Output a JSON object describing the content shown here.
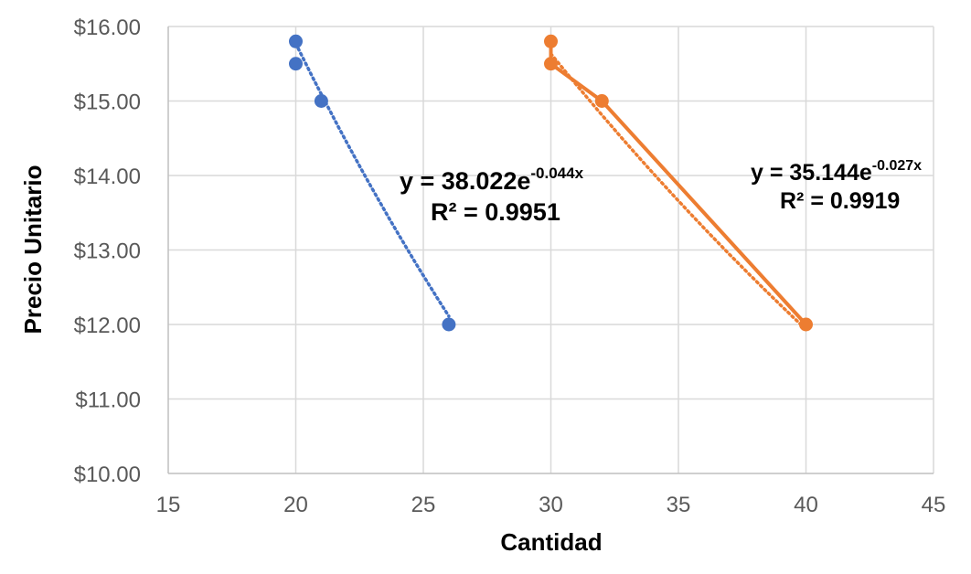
{
  "chart_data": {
    "type": "scatter",
    "title": "",
    "xlabel": "Cantidad",
    "ylabel": "Precio Unitario",
    "xlim": [
      15,
      45
    ],
    "ylim": [
      10,
      16
    ],
    "xticks": [
      "15",
      "20",
      "25",
      "30",
      "35",
      "40",
      "45"
    ],
    "yticks": [
      "$10.00",
      "$11.00",
      "$12.00",
      "$13.00",
      "$14.00",
      "$15.00",
      "$16.00"
    ],
    "grid": true,
    "legend": "none",
    "series": [
      {
        "color": "#4472C4",
        "connect_points": false,
        "points": [
          {
            "x": 20,
            "y": 15.8
          },
          {
            "x": 20,
            "y": 15.5
          },
          {
            "x": 21,
            "y": 15.0
          },
          {
            "x": 26,
            "y": 12.0
          }
        ],
        "trendline": {
          "type": "exponential",
          "a": 38.022,
          "b": -0.044,
          "style": "dotted",
          "equation_base": "y = 38.022e",
          "equation_exp": "-0.044x",
          "r2_label": "R² = 0.9951"
        }
      },
      {
        "color": "#ED7D31",
        "connect_points": true,
        "points": [
          {
            "x": 30,
            "y": 15.8
          },
          {
            "x": 30,
            "y": 15.5
          },
          {
            "x": 32,
            "y": 15.0
          },
          {
            "x": 40,
            "y": 12.0
          }
        ],
        "trendline": {
          "type": "exponential",
          "a": 35.144,
          "b": -0.027,
          "style": "dotted",
          "equation_base": "y = 35.144e",
          "equation_exp": "-0.027x",
          "r2_label": "R² = 0.9919"
        }
      }
    ]
  }
}
